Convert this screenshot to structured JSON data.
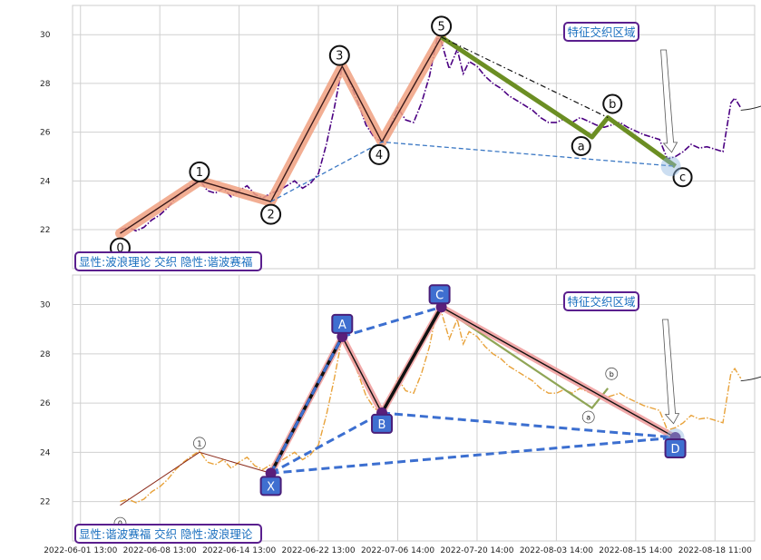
{
  "chart_data": [
    {
      "type": "line",
      "panel": "top",
      "caption": "显性:波浪理论 交织 隐性:谐波赛福",
      "annotation": "特征交织区域",
      "ylim": [
        20.4,
        31.2
      ],
      "yticks": [
        22,
        24,
        26,
        28,
        30
      ],
      "grid": true,
      "price_color": "#4b0082",
      "price_style": "dashdot",
      "price_series": [
        [
          0,
          22.0
        ],
        [
          0.4,
          22.1
        ],
        [
          0.8,
          21.95
        ],
        [
          1.2,
          22.1
        ],
        [
          1.6,
          22.4
        ],
        [
          2.0,
          22.6
        ],
        [
          2.4,
          22.9
        ],
        [
          2.8,
          23.3
        ],
        [
          3.2,
          23.6
        ],
        [
          3.6,
          23.85
        ],
        [
          4.0,
          24.05
        ],
        [
          4.4,
          23.6
        ],
        [
          4.8,
          23.5
        ],
        [
          5.2,
          23.7
        ],
        [
          5.6,
          23.35
        ],
        [
          6.0,
          23.6
        ],
        [
          6.4,
          23.8
        ],
        [
          6.8,
          23.45
        ],
        [
          7.2,
          23.3
        ],
        [
          7.6,
          23.5
        ],
        [
          8.0,
          23.6
        ],
        [
          8.4,
          23.8
        ],
        [
          8.8,
          24.0
        ],
        [
          9.2,
          23.7
        ],
        [
          9.6,
          23.9
        ],
        [
          10.0,
          24.3
        ],
        [
          10.4,
          25.5
        ],
        [
          10.8,
          27.0
        ],
        [
          11.2,
          28.7
        ],
        [
          11.6,
          28.0
        ],
        [
          12.0,
          27.2
        ],
        [
          12.4,
          26.3
        ],
        [
          12.8,
          25.8
        ],
        [
          13.2,
          25.6
        ],
        [
          13.6,
          26.2
        ],
        [
          14.0,
          27.0
        ],
        [
          14.4,
          26.5
        ],
        [
          14.8,
          26.4
        ],
        [
          15.2,
          27.2
        ],
        [
          15.6,
          28.3
        ],
        [
          16.0,
          29.9
        ],
        [
          16.2,
          29.7
        ],
        [
          16.6,
          28.6
        ],
        [
          17.0,
          29.4
        ],
        [
          17.3,
          28.4
        ],
        [
          17.6,
          28.9
        ],
        [
          18.0,
          28.7
        ],
        [
          18.4,
          28.3
        ],
        [
          18.8,
          28.0
        ],
        [
          19.2,
          27.8
        ],
        [
          19.6,
          27.5
        ],
        [
          20.0,
          27.3
        ],
        [
          20.4,
          27.1
        ],
        [
          20.8,
          26.9
        ],
        [
          21.2,
          26.6
        ],
        [
          21.6,
          26.4
        ],
        [
          22.0,
          26.4
        ],
        [
          22.4,
          26.55
        ],
        [
          22.8,
          26.4
        ],
        [
          23.2,
          26.6
        ],
        [
          23.6,
          26.45
        ],
        [
          24.0,
          26.3
        ],
        [
          24.4,
          26.2
        ],
        [
          24.8,
          26.3
        ],
        [
          25.2,
          26.4
        ],
        [
          25.6,
          26.2
        ],
        [
          26.0,
          26.05
        ],
        [
          26.4,
          25.9
        ],
        [
          26.8,
          25.8
        ],
        [
          27.2,
          25.7
        ],
        [
          27.6,
          24.9
        ],
        [
          28.0,
          25.0
        ],
        [
          28.4,
          25.2
        ],
        [
          28.8,
          25.5
        ],
        [
          29.2,
          25.35
        ],
        [
          29.6,
          25.4
        ],
        [
          30.0,
          25.3
        ],
        [
          30.4,
          25.2
        ],
        [
          30.8,
          27.2
        ],
        [
          31.0,
          27.4
        ],
        [
          31.3,
          27.0
        ]
      ],
      "wave_points": [
        {
          "label": "0",
          "x": 0,
          "y": 21.85
        },
        {
          "label": "1",
          "x": 4,
          "y": 24.0
        },
        {
          "label": "2",
          "x": 7.6,
          "y": 23.15
        },
        {
          "label": "3",
          "x": 11.2,
          "y": 28.7
        },
        {
          "label": "4",
          "x": 13.2,
          "y": 25.6
        },
        {
          "label": "5",
          "x": 16.2,
          "y": 29.9
        },
        {
          "label": "a",
          "x": 23.8,
          "y": 25.8
        },
        {
          "label": "b",
          "x": 24.6,
          "y": 26.6
        },
        {
          "label": "c",
          "x": 28.0,
          "y": 24.6
        }
      ]
    },
    {
      "type": "line",
      "panel": "bottom",
      "caption": "显性:谐波赛福 交织 隐性:波浪理论",
      "annotation": "特征交织区域",
      "ylim": [
        20.4,
        31.2
      ],
      "yticks": [
        22,
        24,
        26,
        28,
        30
      ],
      "grid": true,
      "price_color": "#e8a23a",
      "price_style": "dashdot",
      "harmonic_points": [
        {
          "label": "X",
          "x": 7.6,
          "y": 23.15
        },
        {
          "label": "A",
          "x": 11.2,
          "y": 28.7
        },
        {
          "label": "B",
          "x": 13.2,
          "y": 25.6
        },
        {
          "label": "C",
          "x": 16.2,
          "y": 29.9
        },
        {
          "label": "D",
          "x": 28.0,
          "y": 24.6
        }
      ],
      "wave_points": [
        {
          "label": "0",
          "x": 0,
          "y": 21.85
        },
        {
          "label": "1",
          "x": 4,
          "y": 24.0
        },
        {
          "label": "a",
          "x": 23.8,
          "y": 25.8
        },
        {
          "label": "b",
          "x": 24.6,
          "y": 26.6
        }
      ]
    }
  ],
  "x_axis": {
    "tick_labels": [
      "2022-06-01 13:00",
      "2022-06-08 13:00",
      "2022-06-14 13:00",
      "2022-06-22 13:00",
      "2022-07-06 14:00",
      "2022-07-20 14:00",
      "2022-08-03 14:00",
      "2022-08-15 14:00",
      "2022-08-18 11:00"
    ],
    "tick_positions": [
      -2,
      2,
      6,
      10,
      14,
      18,
      22,
      26,
      30
    ]
  }
}
